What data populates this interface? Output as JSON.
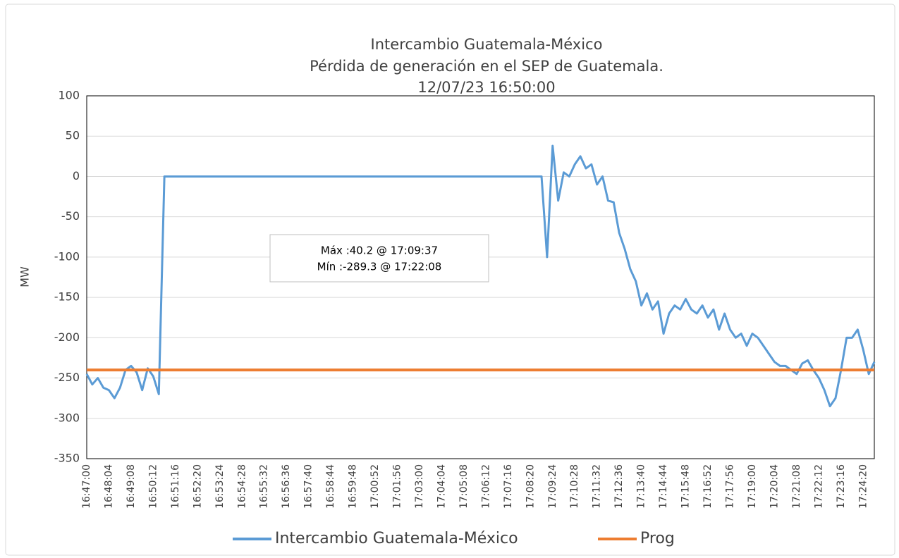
{
  "chart_data": {
    "type": "line",
    "title": [
      "Intercambio Guatemala-México",
      "Pérdida de generación en el SEP de Guatemala.",
      "12/07/23 16:50:00"
    ],
    "ylabel": "MW",
    "annotations": [
      "Máx :40.2 @ 17:09:37",
      "Mín :-289.3 @ 17:22:08"
    ],
    "ylim": [
      -350,
      100
    ],
    "yticks": [
      -350,
      -300,
      -250,
      -200,
      -150,
      -100,
      -50,
      0,
      50,
      100
    ],
    "grid": true,
    "legend": "bottom",
    "categories": [
      "16:47:00",
      null,
      null,
      null,
      "16:48:04",
      null,
      null,
      null,
      "16:49:08",
      null,
      null,
      null,
      "16:50:12",
      null,
      null,
      null,
      "16:51:16",
      null,
      null,
      null,
      "16:52:20",
      null,
      null,
      null,
      "16:53:24",
      null,
      null,
      null,
      "16:54:28",
      null,
      null,
      null,
      "16:55:32",
      null,
      null,
      null,
      "16:56:36",
      null,
      null,
      null,
      "16:57:40",
      null,
      null,
      null,
      "16:58:44",
      null,
      null,
      null,
      "16:59:48",
      null,
      null,
      null,
      "17:00:52",
      null,
      null,
      null,
      "17:01:56",
      null,
      null,
      null,
      "17:03:00",
      null,
      null,
      null,
      "17:04:04",
      null,
      null,
      null,
      "17:05:08",
      null,
      null,
      null,
      "17:06:12",
      null,
      null,
      null,
      "17:07:16",
      null,
      null,
      null,
      "17:08:20",
      null,
      null,
      null,
      "17:09:24",
      null,
      null,
      null,
      "17:10:28",
      null,
      null,
      null,
      "17:11:32",
      null,
      null,
      null,
      "17:12:36",
      null,
      null,
      null,
      "17:13:40",
      null,
      null,
      null,
      "17:14:44",
      null,
      null,
      null,
      "17:15:48",
      null,
      null,
      null,
      "17:16:52",
      null,
      null,
      null,
      "17:17:56",
      null,
      null,
      null,
      "17:19:00",
      null,
      null,
      null,
      "17:20:04",
      null,
      null,
      null,
      "17:21:08",
      null,
      null,
      null,
      "17:22:12",
      null,
      null,
      null,
      "17:23:16",
      null,
      null,
      null,
      "17:24:20",
      null,
      null
    ],
    "series": [
      {
        "name": "Intercambio Guatemala-México",
        "color": "#5b9bd5",
        "values": [
          -245,
          -258,
          -250,
          -262,
          -265,
          -275,
          -262,
          -240,
          -235,
          -243,
          -265,
          -238,
          -248,
          -270,
          0,
          0,
          0,
          0,
          0,
          0,
          0,
          0,
          0,
          0,
          0,
          0,
          0,
          0,
          0,
          0,
          0,
          0,
          0,
          0,
          0,
          0,
          0,
          0,
          0,
          0,
          0,
          0,
          0,
          0,
          0,
          0,
          0,
          0,
          0,
          0,
          0,
          0,
          0,
          0,
          0,
          0,
          0,
          0,
          0,
          0,
          0,
          0,
          0,
          0,
          0,
          0,
          0,
          0,
          0,
          0,
          0,
          0,
          0,
          0,
          0,
          0,
          0,
          0,
          0,
          0,
          0,
          0,
          0,
          -100,
          38,
          -30,
          5,
          0,
          15,
          25,
          10,
          15,
          -10,
          0,
          -30,
          -32,
          -70,
          -90,
          -115,
          -130,
          -160,
          -145,
          -165,
          -155,
          -195,
          -170,
          -160,
          -165,
          -152,
          -165,
          -170,
          -160,
          -175,
          -165,
          -190,
          -170,
          -190,
          -200,
          -195,
          -210,
          -195,
          -200,
          -210,
          -220,
          -230,
          -235,
          -235,
          -240,
          -245,
          -232,
          -228,
          -240,
          -250,
          -265,
          -285,
          -275,
          -240,
          -200,
          -200,
          -190,
          -215,
          -245,
          -230
        ]
      },
      {
        "name": "Prog",
        "color": "#ed7d31",
        "values": [
          -240,
          -240,
          -240,
          -240,
          -240,
          -240,
          -240,
          -240,
          -240,
          -240,
          -240,
          -240,
          -240,
          -240,
          -240,
          -240,
          -240,
          -240,
          -240,
          -240,
          -240,
          -240,
          -240,
          -240,
          -240,
          -240,
          -240,
          -240,
          -240,
          -240,
          -240,
          -240,
          -240,
          -240,
          -240,
          -240,
          -240,
          -240,
          -240,
          -240,
          -240,
          -240,
          -240,
          -240,
          -240,
          -240,
          -240,
          -240,
          -240,
          -240,
          -240,
          -240,
          -240,
          -240,
          -240,
          -240,
          -240,
          -240,
          -240,
          -240,
          -240,
          -240,
          -240,
          -240,
          -240,
          -240,
          -240,
          -240,
          -240,
          -240,
          -240,
          -240,
          -240,
          -240,
          -240,
          -240,
          -240,
          -240,
          -240,
          -240,
          -240,
          -240,
          -240,
          -240,
          -240,
          -240,
          -240,
          -240,
          -240,
          -240,
          -240,
          -240,
          -240,
          -240,
          -240,
          -240,
          -240,
          -240,
          -240,
          -240,
          -240,
          -240,
          -240,
          -240,
          -240,
          -240,
          -240,
          -240,
          -240,
          -240,
          -240,
          -240,
          -240,
          -240,
          -240,
          -240,
          -240,
          -240,
          -240,
          -240,
          -240,
          -240,
          -240,
          -240,
          -240,
          -240,
          -240,
          -240,
          -240,
          -240,
          -240,
          -240,
          -240,
          -240,
          -240,
          -240,
          -240,
          -240,
          -240,
          -240,
          -240,
          -240,
          -240
        ]
      }
    ]
  }
}
